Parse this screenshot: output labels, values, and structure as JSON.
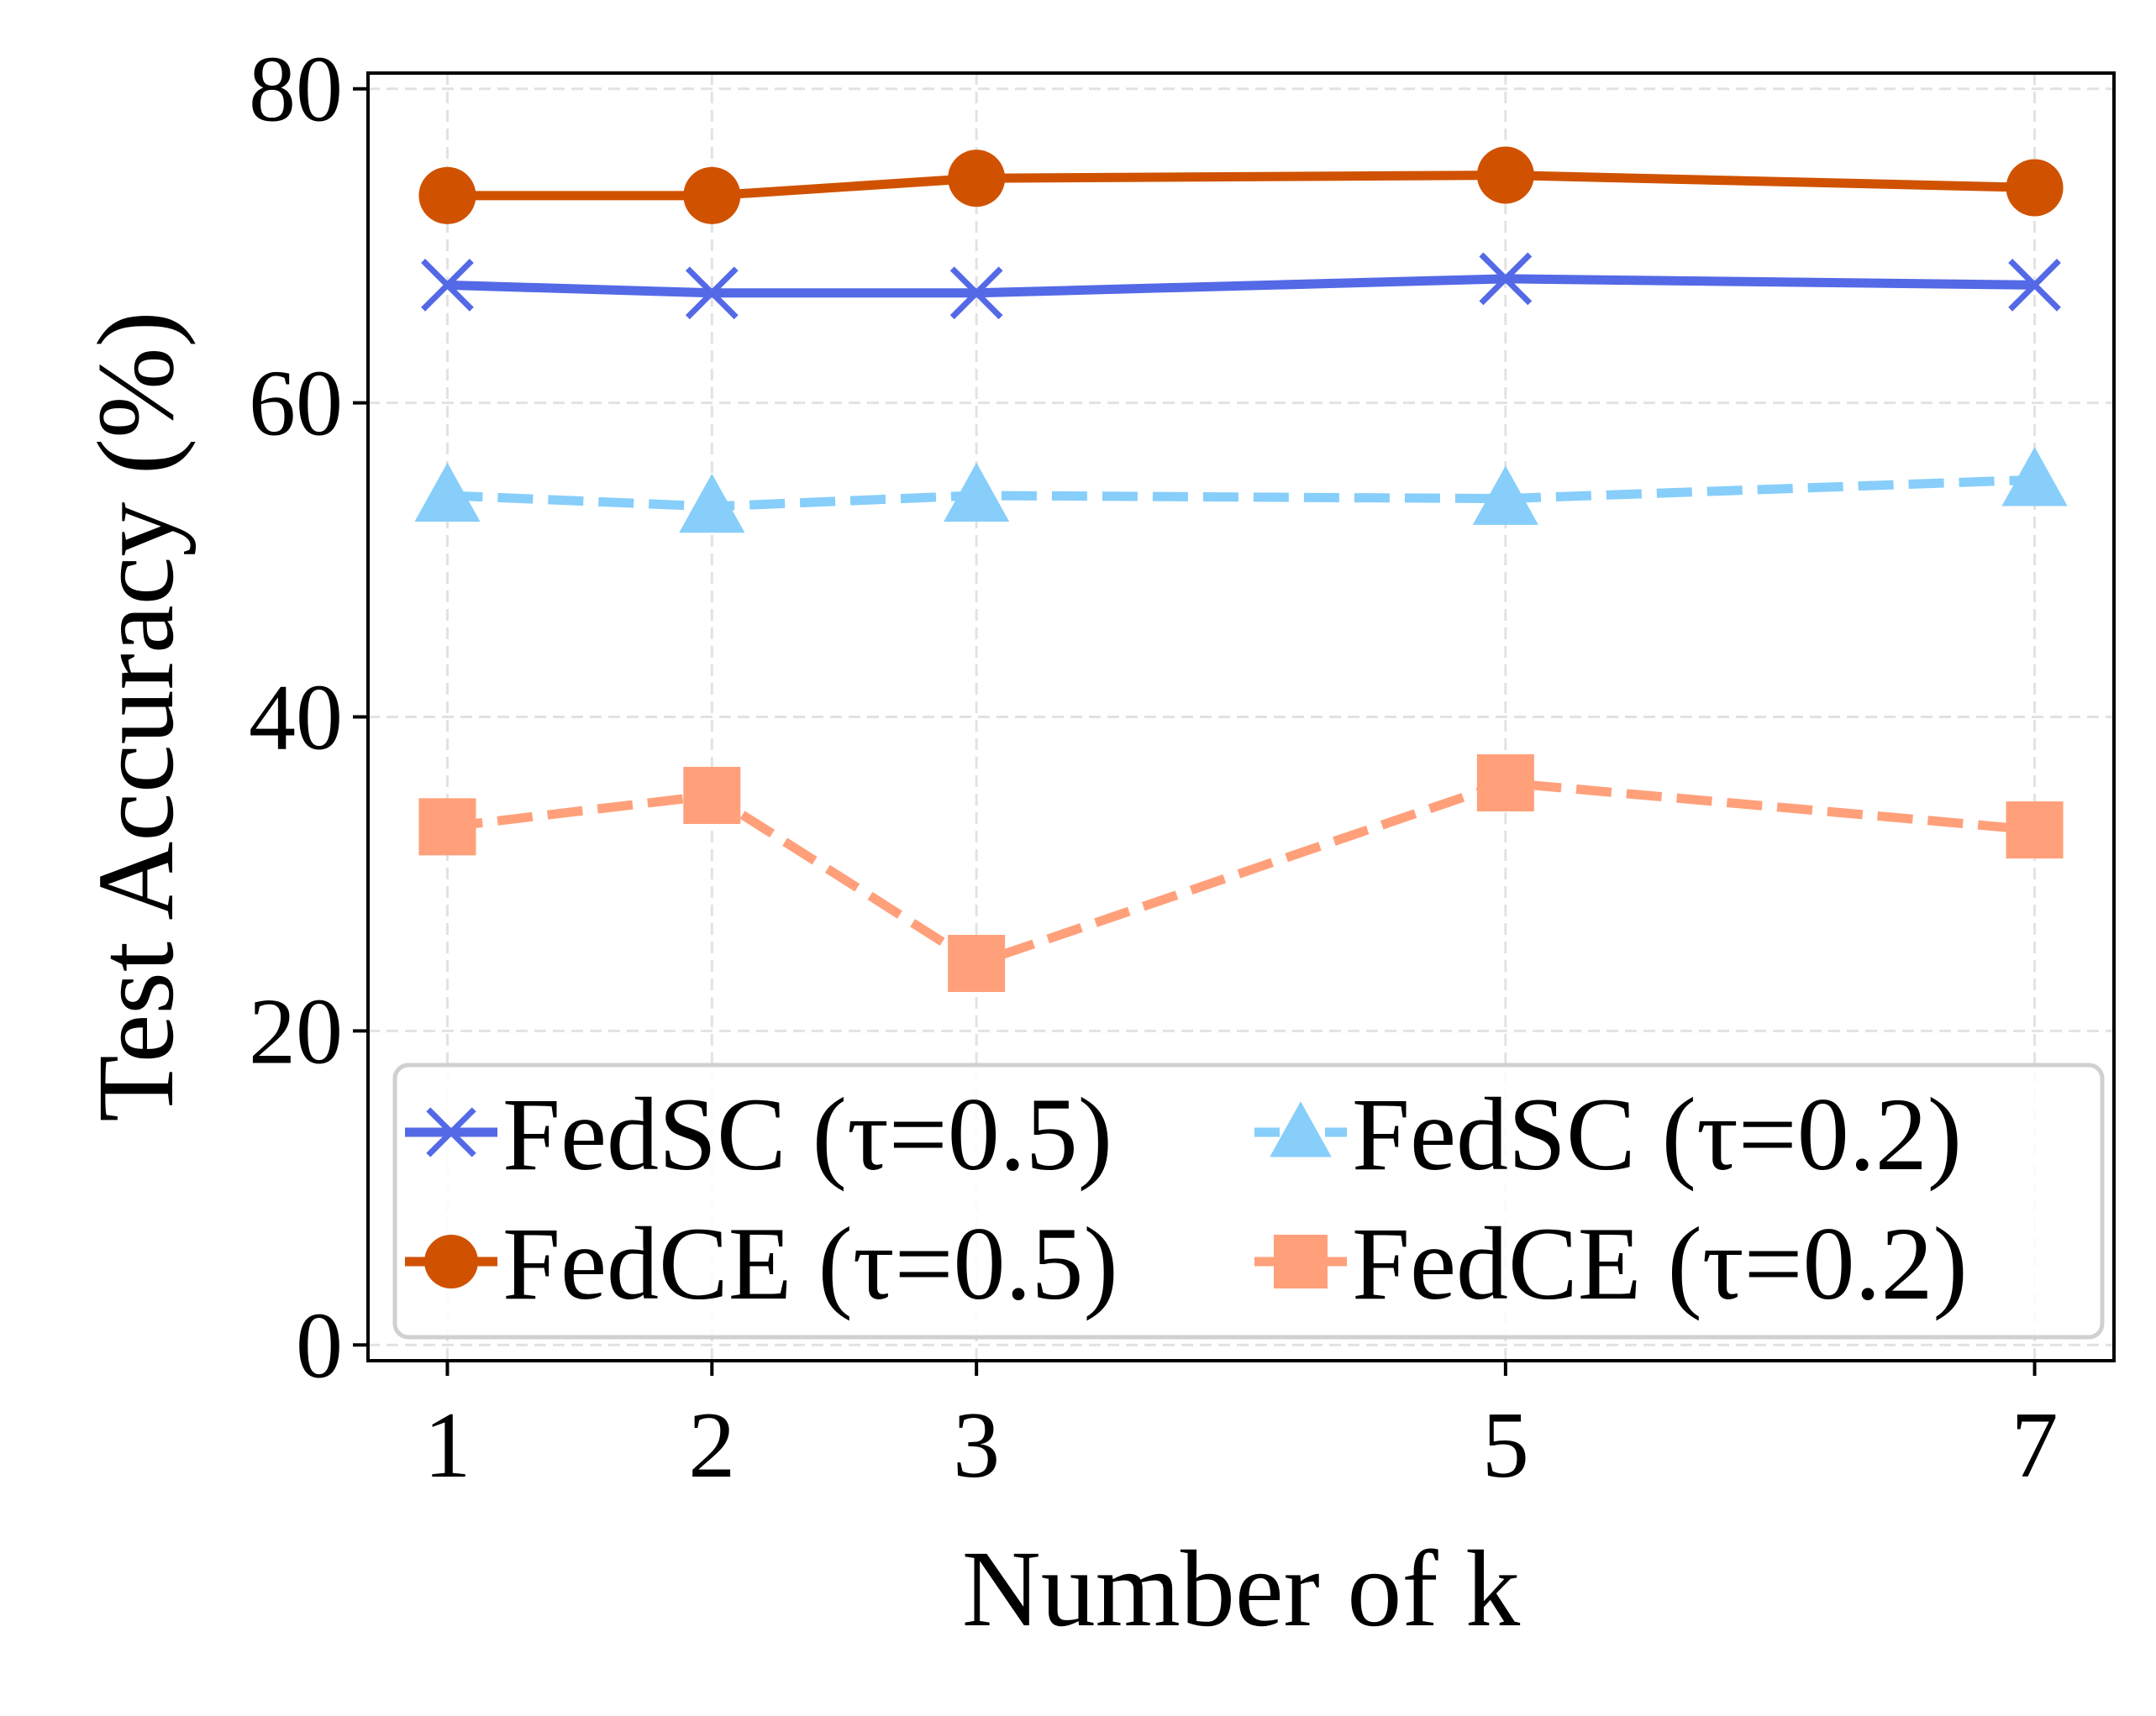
{
  "chart_data": {
    "type": "line",
    "title": "",
    "xlabel": "Number of k",
    "ylabel": "Test Accuracy (%)",
    "x": [
      1,
      2,
      3,
      5,
      7
    ],
    "x_tick_labels": [
      "1",
      "2",
      "3",
      "5",
      "7"
    ],
    "xlim": [
      0.7,
      7.3
    ],
    "ylim": [
      -1,
      81
    ],
    "y_ticks": [
      0,
      20,
      40,
      60,
      80
    ],
    "y_tick_labels": [
      "0",
      "20",
      "40",
      "60",
      "80"
    ],
    "grid": true,
    "legend_position": "lower-center",
    "legend_columns": 2,
    "series": [
      {
        "name": "FedSC (τ=0.5)",
        "values": [
          67.5,
          67.0,
          67.0,
          67.9,
          67.5
        ],
        "color": "#5469e6",
        "line_style": "solid",
        "marker": "x"
      },
      {
        "name": "FedCE (τ=0.5)",
        "values": [
          73.2,
          73.2,
          74.3,
          74.5,
          73.7
        ],
        "color": "#d05200",
        "line_style": "solid",
        "marker": "circle"
      },
      {
        "name": "FedSC (τ=0.2)",
        "values": [
          54.1,
          53.4,
          54.1,
          53.9,
          55.1
        ],
        "color": "#87cefa",
        "line_style": "dashed",
        "marker": "triangle"
      },
      {
        "name": "FedCE (τ=0.2)",
        "values": [
          33.0,
          35.0,
          24.3,
          35.8,
          32.8
        ],
        "color": "#ffa07a",
        "line_style": "dashed",
        "marker": "square"
      }
    ]
  }
}
